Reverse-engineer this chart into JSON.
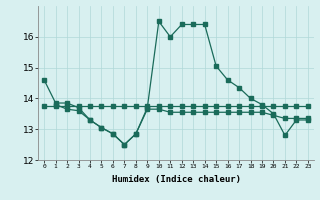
{
  "line1_x": [
    0,
    1,
    2,
    3,
    4,
    5,
    6,
    7,
    8,
    9,
    10,
    11,
    12,
    13,
    14,
    15,
    16,
    17,
    18,
    19,
    20,
    21,
    22,
    23
  ],
  "line1_y": [
    14.6,
    13.85,
    13.85,
    13.7,
    13.3,
    13.05,
    12.85,
    12.5,
    12.85,
    13.7,
    16.5,
    16.0,
    16.4,
    16.4,
    16.4,
    15.05,
    14.6,
    14.35,
    14.0,
    13.8,
    13.5,
    12.8,
    13.3,
    13.3
  ],
  "line2_x": [
    0,
    1,
    2,
    3,
    4,
    5,
    6,
    7,
    8,
    9,
    10,
    11,
    12,
    13,
    14,
    15,
    16,
    17,
    18,
    19,
    20,
    21,
    22,
    23
  ],
  "line2_y": [
    13.75,
    13.75,
    13.75,
    13.75,
    13.75,
    13.75,
    13.75,
    13.75,
    13.75,
    13.75,
    13.75,
    13.75,
    13.75,
    13.75,
    13.75,
    13.75,
    13.75,
    13.75,
    13.75,
    13.75,
    13.75,
    13.75,
    13.75,
    13.75
  ],
  "line3_x": [
    1,
    2,
    3,
    4,
    5,
    6,
    7,
    8,
    9,
    10,
    11,
    12,
    13,
    14,
    15,
    16,
    17,
    18,
    19,
    20,
    21,
    22,
    23
  ],
  "line3_y": [
    13.8,
    13.65,
    13.6,
    13.3,
    13.05,
    12.85,
    12.5,
    12.85,
    13.65,
    13.65,
    13.55,
    13.55,
    13.55,
    13.55,
    13.55,
    13.55,
    13.55,
    13.55,
    13.55,
    13.45,
    13.35,
    13.35,
    13.35
  ],
  "line_color": "#1a6b5a",
  "bg_color": "#d8f0f0",
  "grid_color": "#b0d8d8",
  "xlabel": "Humidex (Indice chaleur)",
  "ylim": [
    12,
    17
  ],
  "xlim": [
    -0.5,
    23.5
  ],
  "yticks": [
    12,
    13,
    14,
    15,
    16
  ],
  "xticks": [
    0,
    1,
    2,
    3,
    4,
    5,
    6,
    7,
    8,
    9,
    10,
    11,
    12,
    13,
    14,
    15,
    16,
    17,
    18,
    19,
    20,
    21,
    22,
    23
  ]
}
